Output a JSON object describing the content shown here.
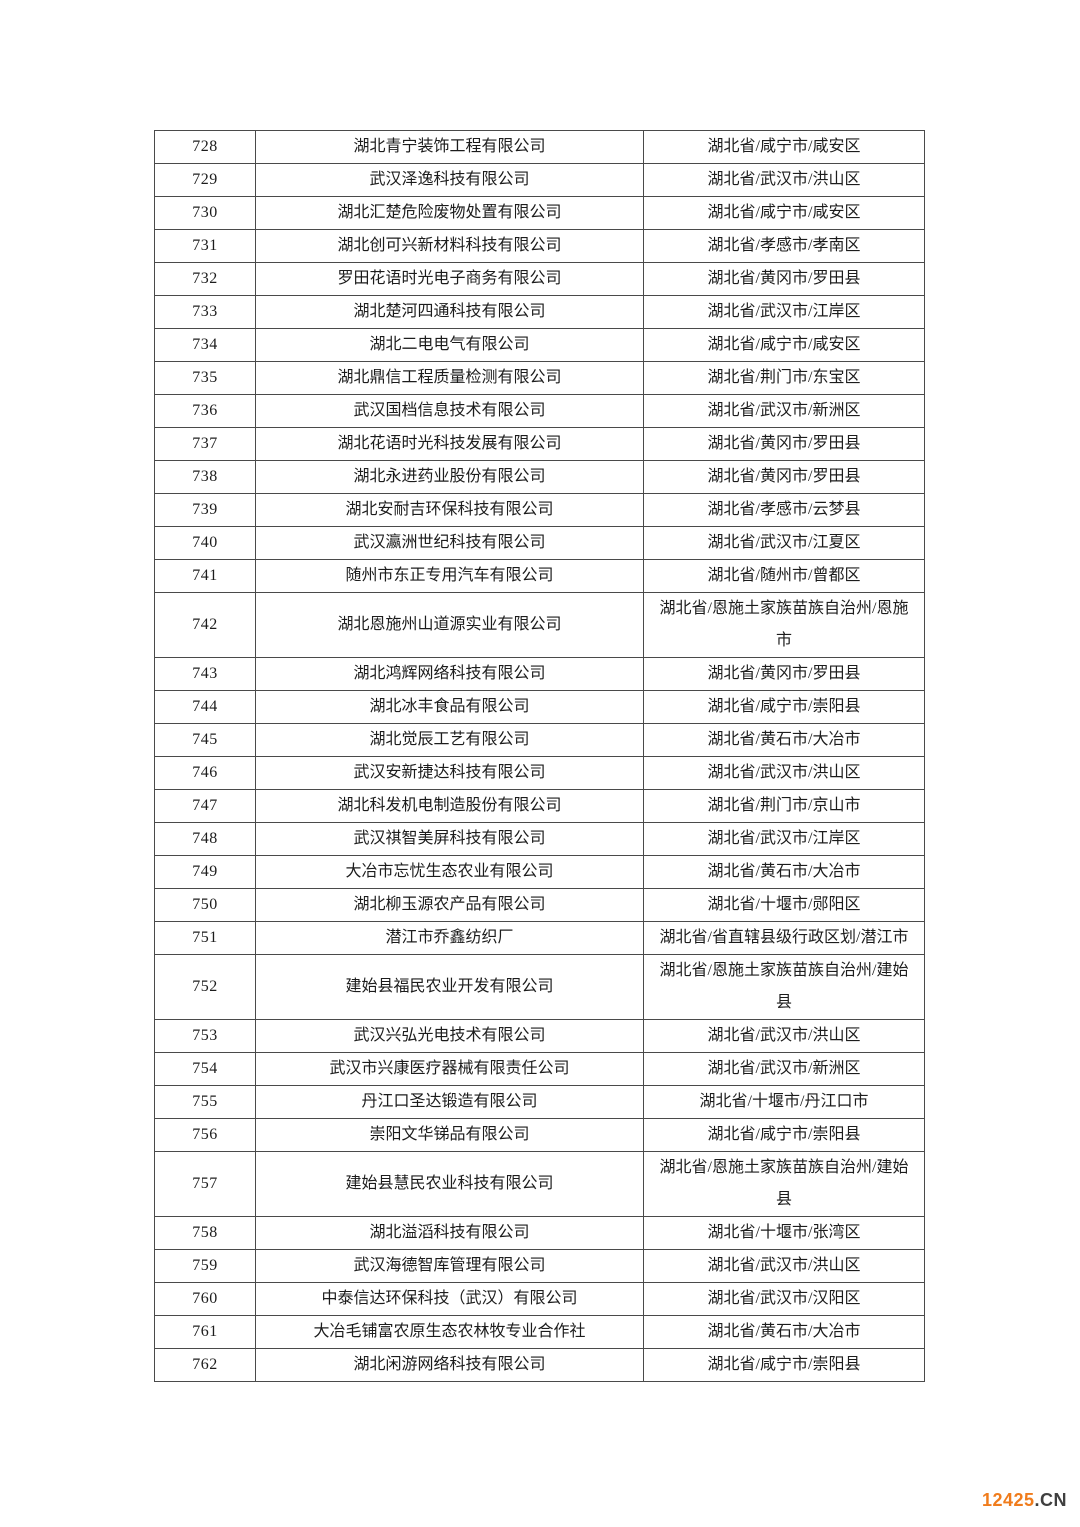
{
  "watermark": {
    "number": "12425",
    "suffix": ".CN",
    "number_color": "#f07c1c",
    "suffix_color": "#3f3f3f"
  },
  "table": {
    "rows": [
      {
        "no": "728",
        "company": "湖北青宁装饰工程有限公司",
        "region": "湖北省/咸宁市/咸安区"
      },
      {
        "no": "729",
        "company": "武汉泽逸科技有限公司",
        "region": "湖北省/武汉市/洪山区"
      },
      {
        "no": "730",
        "company": "湖北汇楚危险废物处置有限公司",
        "region": "湖北省/咸宁市/咸安区"
      },
      {
        "no": "731",
        "company": "湖北创可兴新材料科技有限公司",
        "region": "湖北省/孝感市/孝南区"
      },
      {
        "no": "732",
        "company": "罗田花语时光电子商务有限公司",
        "region": "湖北省/黄冈市/罗田县"
      },
      {
        "no": "733",
        "company": "湖北楚河四通科技有限公司",
        "region": "湖北省/武汉市/江岸区"
      },
      {
        "no": "734",
        "company": "湖北二电电气有限公司",
        "region": "湖北省/咸宁市/咸安区"
      },
      {
        "no": "735",
        "company": "湖北鼎信工程质量检测有限公司",
        "region": "湖北省/荆门市/东宝区"
      },
      {
        "no": "736",
        "company": "武汉国档信息技术有限公司",
        "region": "湖北省/武汉市/新洲区"
      },
      {
        "no": "737",
        "company": "湖北花语时光科技发展有限公司",
        "region": "湖北省/黄冈市/罗田县"
      },
      {
        "no": "738",
        "company": "湖北永进药业股份有限公司",
        "region": "湖北省/黄冈市/罗田县"
      },
      {
        "no": "739",
        "company": "湖北安耐吉环保科技有限公司",
        "region": "湖北省/孝感市/云梦县"
      },
      {
        "no": "740",
        "company": "武汉瀛洲世纪科技有限公司",
        "region": "湖北省/武汉市/江夏区"
      },
      {
        "no": "741",
        "company": "随州市东正专用汽车有限公司",
        "region": "湖北省/随州市/曾都区"
      },
      {
        "no": "742",
        "company": "湖北恩施州山道源实业有限公司",
        "region": "湖北省/恩施土家族苗族自治州/恩施市"
      },
      {
        "no": "743",
        "company": "湖北鸿辉网络科技有限公司",
        "region": "湖北省/黄冈市/罗田县"
      },
      {
        "no": "744",
        "company": "湖北冰丰食品有限公司",
        "region": "湖北省/咸宁市/崇阳县"
      },
      {
        "no": "745",
        "company": "湖北觉辰工艺有限公司",
        "region": "湖北省/黄石市/大冶市"
      },
      {
        "no": "746",
        "company": "武汉安新捷达科技有限公司",
        "region": "湖北省/武汉市/洪山区"
      },
      {
        "no": "747",
        "company": "湖北科发机电制造股份有限公司",
        "region": "湖北省/荆门市/京山市"
      },
      {
        "no": "748",
        "company": "武汉祺智美屏科技有限公司",
        "region": "湖北省/武汉市/江岸区"
      },
      {
        "no": "749",
        "company": "大冶市忘忧生态农业有限公司",
        "region": "湖北省/黄石市/大冶市"
      },
      {
        "no": "750",
        "company": "湖北柳玉源农产品有限公司",
        "region": "湖北省/十堰市/郧阳区"
      },
      {
        "no": "751",
        "company": "潜江市乔鑫纺织厂",
        "region": "湖北省/省直辖县级行政区划/潜江市"
      },
      {
        "no": "752",
        "company": "建始县福民农业开发有限公司",
        "region": "湖北省/恩施土家族苗族自治州/建始县"
      },
      {
        "no": "753",
        "company": "武汉兴弘光电技术有限公司",
        "region": "湖北省/武汉市/洪山区"
      },
      {
        "no": "754",
        "company": "武汉市兴康医疗器械有限责任公司",
        "region": "湖北省/武汉市/新洲区"
      },
      {
        "no": "755",
        "company": "丹江口圣达锻造有限公司",
        "region": "湖北省/十堰市/丹江口市"
      },
      {
        "no": "756",
        "company": "崇阳文华锑品有限公司",
        "region": "湖北省/咸宁市/崇阳县"
      },
      {
        "no": "757",
        "company": "建始县慧民农业科技有限公司",
        "region": "湖北省/恩施土家族苗族自治州/建始县"
      },
      {
        "no": "758",
        "company": "湖北溢滔科技有限公司",
        "region": "湖北省/十堰市/张湾区"
      },
      {
        "no": "759",
        "company": "武汉海德智库管理有限公司",
        "region": "湖北省/武汉市/洪山区"
      },
      {
        "no": "760",
        "company": "中泰信达环保科技（武汉）有限公司",
        "region": "湖北省/武汉市/汉阳区"
      },
      {
        "no": "761",
        "company": "大冶毛铺富农原生态农林牧专业合作社",
        "region": "湖北省/黄石市/大冶市"
      },
      {
        "no": "762",
        "company": "湖北闲游网络科技有限公司",
        "region": "湖北省/咸宁市/崇阳县"
      }
    ]
  }
}
